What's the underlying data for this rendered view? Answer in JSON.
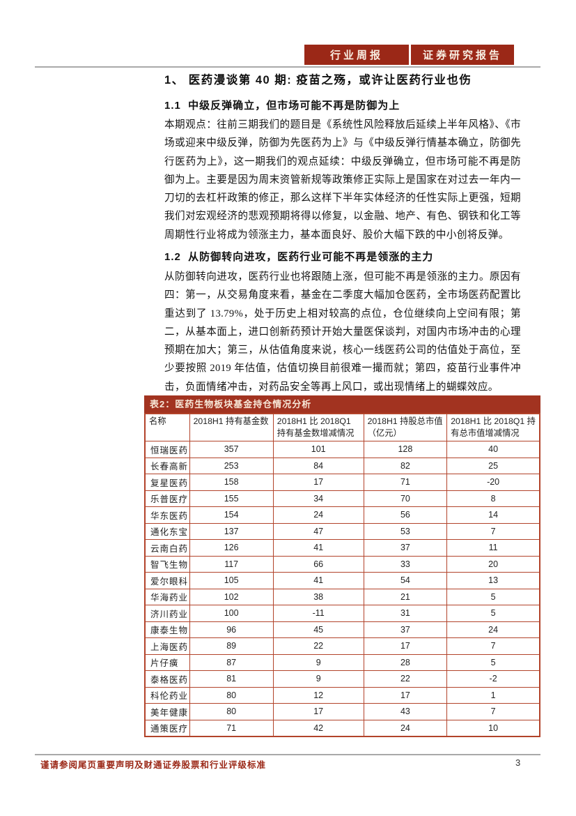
{
  "header": {
    "badge_left": "行业周报",
    "badge_right": "证券研究报告"
  },
  "title": "1、 医药漫谈第 40 期: 疫苗之殇，或许让医药行业也伤",
  "sections": [
    {
      "heading": "1.1  中级反弹确立，但市场可能不再是防御为上",
      "body": "本期观点：往前三期我们的题目是《系统性风险释放后延续上半年风格》、《市场或迎来中级反弹，防御为先医药为上》与《中级反弹行情基本确立，防御先行医药为上》，这一期我们的观点延续：中级反弹确立，但市场可能不再是防御为上。主要是因为周末资管新规等政策修正实际上是国家在对过去一年内一刀切的去杠杆政策的修正，那么这样下半年实体经济的任性实际上更强，短期我们对宏观经济的悲观预期将得以修复，以金融、地产、有色、钢铁和化工等周期性行业将成为领涨主力，基本面良好、股价大幅下跌的中小创将反弹。"
    },
    {
      "heading": "1.2  从防御转向进攻，医药行业可能不再是领涨的主力",
      "body": "从防御转向进攻，医药行业也将跟随上涨，但可能不再是领涨的主力。原因有四：第一，从交易角度来看，基金在二季度大幅加仓医药，全市场医药配置比重达到了 13.79%，处于历史上相对较高的点位，仓位继续向上空间有限；第二，从基本面上，进口创新药预计开始大量医保谈判，对国内市场冲击的心理预期在加大；第三，从估值角度来说，核心一线医药公司的估值处于高位，至少要按照 2019 年估值，估值切换目前很难一撮而就；第四，疫苗行业事件冲击，负面情绪冲击，对药品安全等再上风口，或出现情绪上的蝴蝶效应。"
    }
  ],
  "table": {
    "title": "表2：医药生物板块基金持仓情况分析",
    "columns": [
      "名称",
      "2018H1 持有基金数",
      "2018H1 比 2018Q1 持有基金数增减情况",
      "2018H1 持股总市值（亿元）",
      "2018H1 比 2018Q1 持有总市值增减情况"
    ],
    "rows": [
      [
        "恒瑞医药",
        "357",
        "101",
        "128",
        "40"
      ],
      [
        "长春高新",
        "253",
        "84",
        "82",
        "25"
      ],
      [
        "复星医药",
        "158",
        "17",
        "71",
        "-20"
      ],
      [
        "乐普医疗",
        "155",
        "34",
        "70",
        "8"
      ],
      [
        "华东医药",
        "154",
        "24",
        "56",
        "14"
      ],
      [
        "通化东宝",
        "137",
        "47",
        "53",
        "7"
      ],
      [
        "云南白药",
        "126",
        "41",
        "37",
        "11"
      ],
      [
        "智飞生物",
        "117",
        "66",
        "33",
        "20"
      ],
      [
        "爱尔眼科",
        "105",
        "41",
        "54",
        "13"
      ],
      [
        "华海药业",
        "102",
        "38",
        "21",
        "5"
      ],
      [
        "济川药业",
        "100",
        "-11",
        "31",
        "5"
      ],
      [
        "康泰生物",
        "96",
        "45",
        "37",
        "24"
      ],
      [
        "上海医药",
        "89",
        "22",
        "17",
        "7"
      ],
      [
        "片仔癀",
        "87",
        "9",
        "28",
        "5"
      ],
      [
        "泰格医药",
        "81",
        "9",
        "22",
        "-2"
      ],
      [
        "科伦药业",
        "80",
        "12",
        "17",
        "1"
      ],
      [
        "美年健康",
        "80",
        "17",
        "43",
        "7"
      ],
      [
        "通策医疗",
        "71",
        "42",
        "24",
        "10"
      ]
    ]
  },
  "footer": {
    "disclaimer": "谨请参阅尾页重要声明及财通证券股票和行业评级标准",
    "page_number": "3"
  },
  "colors": {
    "brand_red": "#9b2817",
    "table_title_red": "#a23320",
    "table_border_red": "#b2432a",
    "rule_gray": "#a9a9a9"
  }
}
